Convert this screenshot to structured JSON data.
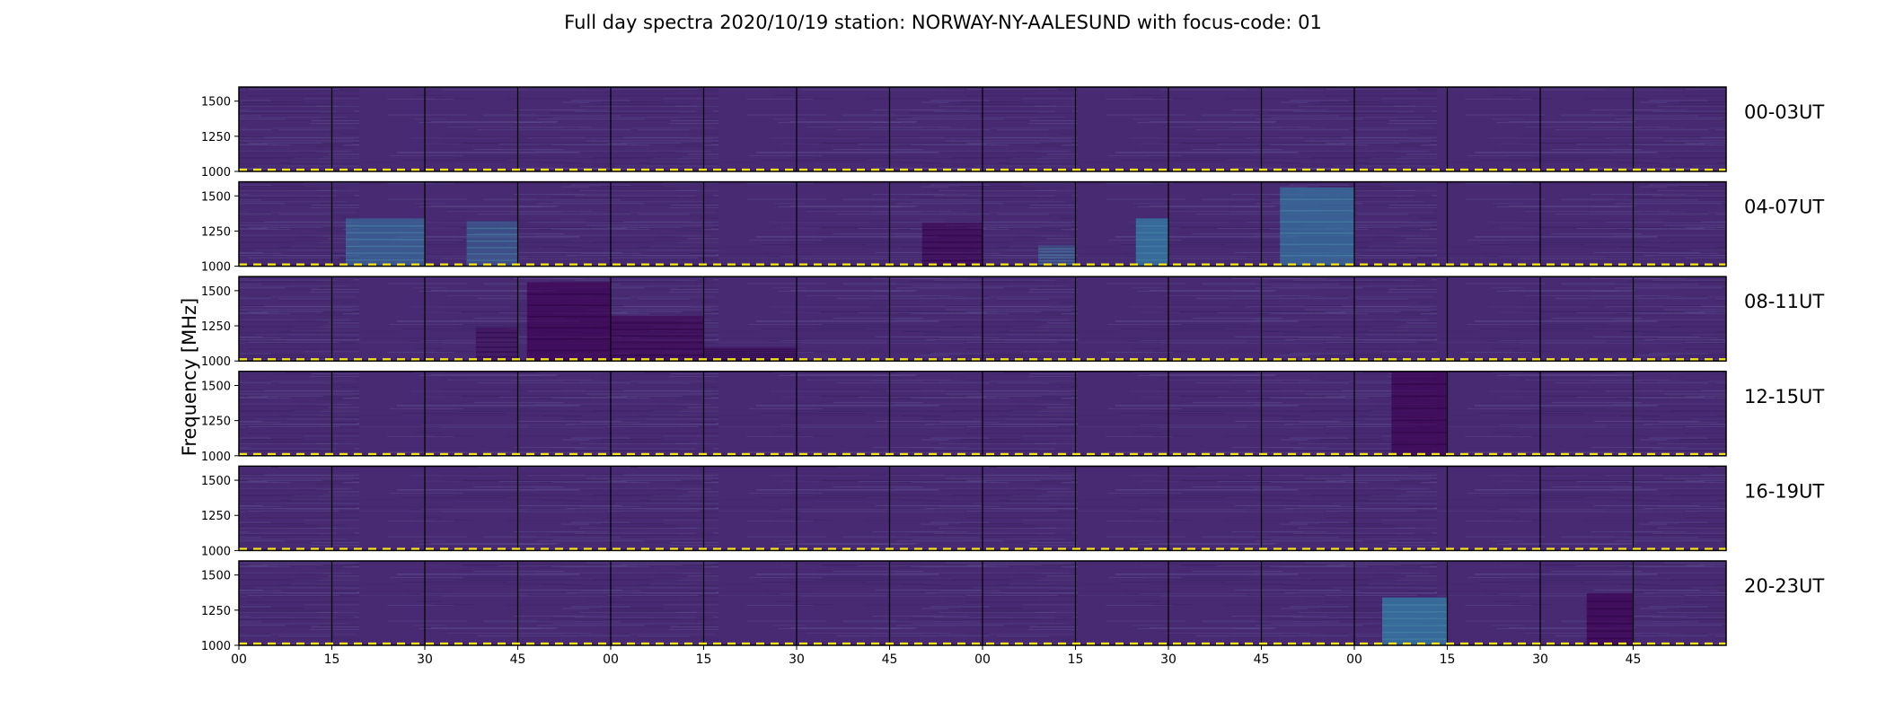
{
  "chart_data": {
    "type": "heatmap",
    "title": "Full day spectra 2020/10/19 station: NORWAY-NY-AALESUND with focus-code: 01",
    "ylabel": "Frequency [MHz]",
    "xlabel": "",
    "y_range": [
      1000,
      1600
    ],
    "yticks": [
      "1000",
      "1250",
      "1500"
    ],
    "xticks": [
      "00",
      "15",
      "30",
      "45",
      "00",
      "15",
      "30",
      "45",
      "00",
      "15",
      "30",
      "45",
      "00",
      "15",
      "30",
      "45"
    ],
    "colormap": "viridis",
    "panels_per_row": 16,
    "panel_minutes": 15,
    "marker_line": {
      "frequency_mhz": 1010,
      "color": "#f5e21e",
      "style": "dashed"
    },
    "rows": [
      {
        "label": "00-03UT",
        "bursts": []
      },
      {
        "label": "04-07UT",
        "bursts": [
          {
            "panel": 1,
            "t0": 0.15,
            "t1": 1.0,
            "f_top": 1340,
            "level": 0.28
          },
          {
            "panel": 2,
            "t0": 0.45,
            "t1": 1.0,
            "f_top": 1320,
            "level": 0.22
          },
          {
            "panel": 7,
            "t0": 0.35,
            "t1": 1.0,
            "f_top": 1310,
            "level": -0.25
          },
          {
            "panel": 8,
            "t0": 0.6,
            "t1": 1.0,
            "f_top": 1150,
            "level": 0.15
          },
          {
            "panel": 9,
            "t0": 0.65,
            "t1": 1.0,
            "f_top": 1340,
            "level": 0.38
          },
          {
            "panel": 11,
            "t0": 0.2,
            "t1": 1.0,
            "f_top": 1560,
            "level": 0.32
          }
        ]
      },
      {
        "label": "08-11UT",
        "bursts": [
          {
            "panel": 2,
            "t0": 0.55,
            "t1": 1.0,
            "f_top": 1240,
            "level": -0.15
          },
          {
            "panel": 3,
            "t0": 0.1,
            "t1": 1.0,
            "f_top": 1560,
            "level": -0.3
          },
          {
            "panel": 4,
            "t0": 0.0,
            "t1": 1.0,
            "f_top": 1320,
            "level": -0.25
          },
          {
            "panel": 5,
            "t0": 0.0,
            "t1": 1.0,
            "f_top": 1100,
            "level": -0.15
          }
        ]
      },
      {
        "label": "12-15UT",
        "bursts": [
          {
            "panel": 12,
            "t0": 0.4,
            "t1": 1.0,
            "f_top": 1600,
            "level": -0.3
          }
        ]
      },
      {
        "label": "16-19UT",
        "bursts": []
      },
      {
        "label": "20-23UT",
        "bursts": [
          {
            "panel": 12,
            "t0": 0.3,
            "t1": 1.0,
            "f_top": 1340,
            "level": 0.38
          },
          {
            "panel": 14,
            "t0": 0.5,
            "t1": 1.0,
            "f_top": 1370,
            "level": -0.3
          }
        ]
      }
    ]
  }
}
